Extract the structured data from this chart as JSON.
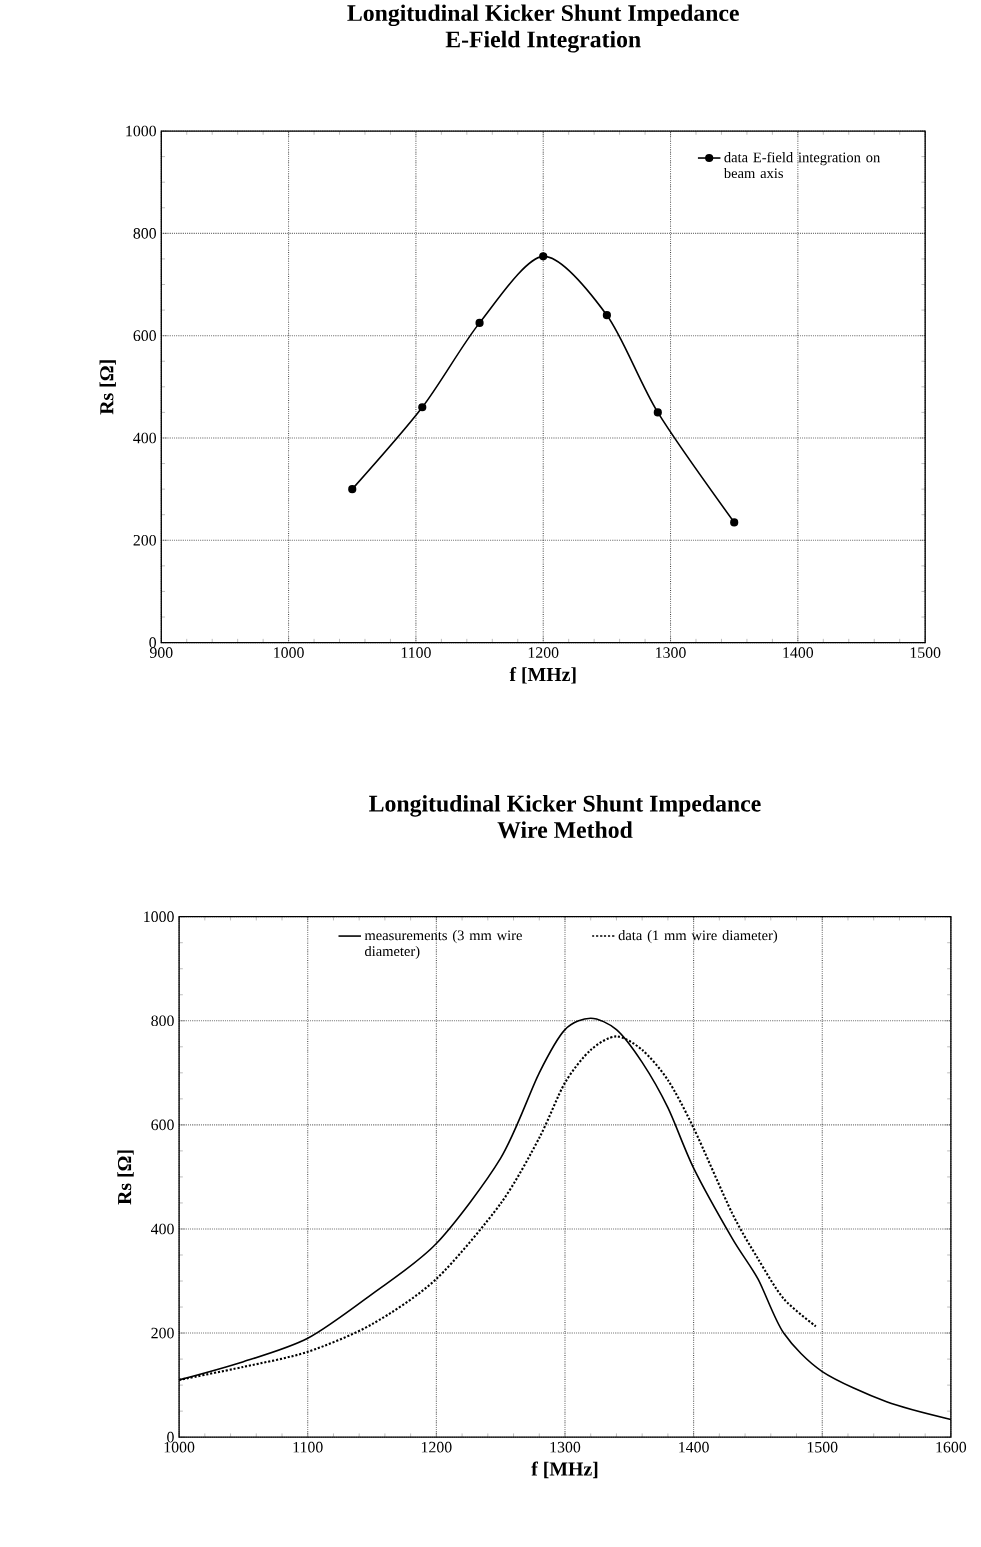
{
  "chart_data": [
    {
      "type": "line",
      "title": "Longitudinal Kicker Shunt Impedance",
      "subtitle": "E-Field Integration",
      "xlabel": "f [MHz]",
      "ylabel": "Rs [Ω]",
      "xlim": [
        900,
        1500
      ],
      "xticks": [
        900,
        1000,
        1100,
        1200,
        1300,
        1400,
        1500
      ],
      "ylim": [
        0,
        1000
      ],
      "yticks": [
        0,
        200,
        400,
        600,
        800,
        1000
      ],
      "grid": true,
      "legend": "top right",
      "series": [
        {
          "name": "data E-field integration on beam axis",
          "color": "#000000",
          "marker": "circle",
          "line_style": "solid",
          "x": [
            1050,
            1105,
            1150,
            1200,
            1250,
            1290,
            1350
          ],
          "values": [
            300,
            460,
            625,
            755,
            640,
            450,
            235
          ]
        }
      ]
    },
    {
      "type": "line",
      "title": "Longitudinal Kicker Shunt Impedance",
      "subtitle": "Wire Method",
      "xlabel": "f [MHz]",
      "ylabel": "Rs [Ω]",
      "xlim": [
        1000,
        1600
      ],
      "xticks": [
        1000,
        1100,
        1200,
        1300,
        1400,
        1500,
        1600
      ],
      "ylim": [
        0,
        1000
      ],
      "yticks": [
        0,
        200,
        400,
        600,
        800,
        1000
      ],
      "grid": true,
      "legend": "top",
      "series": [
        {
          "name": "measurements (3 mm wire diameter)",
          "color": "#000000",
          "line_style": "solid",
          "x": [
            1000,
            1050,
            1100,
            1150,
            1200,
            1250,
            1280,
            1300,
            1320,
            1340,
            1360,
            1380,
            1400,
            1430,
            1450,
            1470,
            1500,
            1550,
            1600
          ],
          "values": [
            110,
            145,
            190,
            275,
            372,
            536,
            700,
            783,
            805,
            783,
            720,
            633,
            517,
            382,
            304,
            200,
            126,
            68,
            34
          ]
        },
        {
          "name": "data (1 mm wire diameter)",
          "color": "#000000",
          "line_style": "dotted",
          "x": [
            1000,
            1050,
            1100,
            1150,
            1200,
            1250,
            1280,
            1300,
            1320,
            1340,
            1360,
            1380,
            1400,
            1430,
            1450,
            1470,
            1495
          ],
          "values": [
            110,
            135,
            164,
            217,
            304,
            449,
            575,
            681,
            744,
            770,
            744,
            686,
            594,
            430,
            343,
            266,
            213
          ]
        }
      ]
    }
  ]
}
